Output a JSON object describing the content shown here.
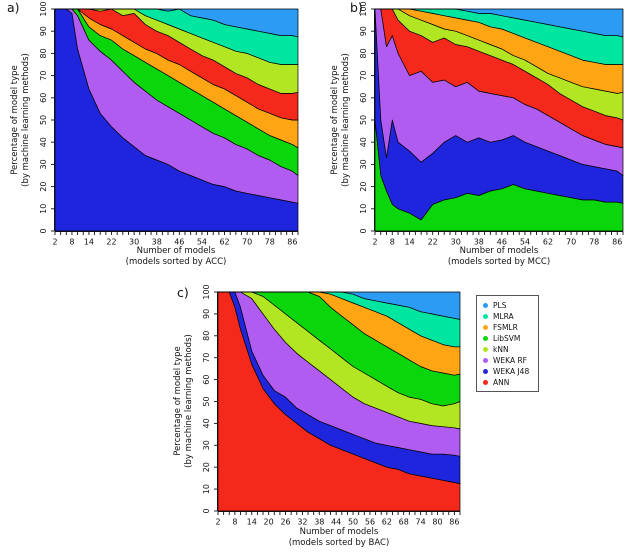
{
  "figure": {
    "background": "#ffffff",
    "panel_letters": [
      "a)",
      "b)",
      "c)"
    ]
  },
  "legend": {
    "items": [
      {
        "label": "PLS",
        "color": "#2b9bf3"
      },
      {
        "label": "MLRA",
        "color": "#00e6a0"
      },
      {
        "label": "FSMLR",
        "color": "#ffa513"
      },
      {
        "label": "LibSVM",
        "color": "#0bd60b"
      },
      {
        "label": "kNN",
        "color": "#b2e522"
      },
      {
        "label": "WEKA RF",
        "color": "#b05cf0"
      },
      {
        "label": "WEKA J48",
        "color": "#1f25dd"
      },
      {
        "label": "ANN",
        "color": "#f5281c"
      }
    ]
  },
  "chart_data": [
    {
      "type": "area",
      "stacked": true,
      "panel": "a",
      "xlabel": "Number of models",
      "xlabel2": "(models sorted by ACC)",
      "ylabel": "Percentage of model type",
      "ylabel2": "(by machine learning methods)",
      "xlim": [
        2,
        88
      ],
      "ylim": [
        0,
        100
      ],
      "x_minor_step": 2,
      "x_tick_labels": [
        2,
        8,
        14,
        22,
        30,
        38,
        46,
        54,
        62,
        70,
        78,
        86
      ],
      "y_ticks": [
        0,
        10,
        20,
        30,
        40,
        50,
        60,
        70,
        80,
        90,
        100
      ],
      "x": [
        2,
        6,
        8,
        10,
        14,
        18,
        22,
        26,
        30,
        34,
        38,
        42,
        46,
        50,
        54,
        58,
        62,
        66,
        70,
        74,
        78,
        82,
        86,
        88
      ],
      "series": [
        {
          "name": "WEKA J48",
          "color": "#1f25dd",
          "values": [
            100,
            100,
            98,
            82,
            64,
            53,
            47,
            42,
            38,
            34,
            32,
            30,
            27,
            25,
            23,
            21,
            20,
            18,
            17,
            16,
            15,
            14,
            13,
            12.5
          ]
        },
        {
          "name": "WEKA RF",
          "color": "#b05cf0",
          "values": [
            0,
            0,
            2,
            15,
            22,
            28,
            30,
            30,
            29,
            29,
            27,
            26,
            26,
            25,
            24,
            23,
            22,
            21,
            20,
            18,
            17,
            15,
            14,
            12.5
          ]
        },
        {
          "name": "LibSVM",
          "color": "#0bd60b",
          "values": [
            0,
            0,
            0,
            3,
            6,
            7,
            9,
            10,
            12,
            13,
            14,
            14,
            14,
            14,
            14,
            14,
            13,
            13,
            12,
            12,
            11,
            12,
            12,
            12.5
          ]
        },
        {
          "name": "FSMLR",
          "color": "#ffa513",
          "values": [
            0,
            0,
            0,
            0,
            4,
            5,
            5,
            6,
            6,
            6,
            7,
            7,
            8,
            8,
            8,
            8,
            9,
            9,
            9,
            9,
            10,
            10,
            11,
            12.5
          ]
        },
        {
          "name": "ANN",
          "color": "#f5281c",
          "values": [
            0,
            0,
            0,
            0,
            4,
            6,
            9,
            9,
            13,
            11,
            10,
            11,
            10,
            10,
            10,
            11,
            10,
            10,
            11,
            11,
            11,
            11,
            12,
            12.5
          ]
        },
        {
          "name": "kNN",
          "color": "#b2e522",
          "values": [
            0,
            0,
            0,
            0,
            0,
            1,
            0,
            3,
            2,
            4,
            5,
            5,
            6,
            7,
            8,
            8,
            9,
            10,
            11,
            12,
            12,
            13,
            13,
            12.5
          ]
        },
        {
          "name": "MLRA",
          "color": "#00e6a0",
          "values": [
            0,
            0,
            0,
            0,
            0,
            0,
            0,
            0,
            0,
            3,
            5,
            6,
            9,
            8,
            9,
            10,
            10,
            11,
            11,
            12,
            13,
            13,
            13,
            12.5
          ]
        },
        {
          "name": "PLS",
          "color": "#2b9bf3",
          "values": [
            0,
            0,
            0,
            0,
            0,
            0,
            0,
            0,
            0,
            0,
            0,
            1,
            0,
            3,
            4,
            5,
            7,
            8,
            9,
            10,
            11,
            12,
            12,
            12.5
          ]
        }
      ]
    },
    {
      "type": "area",
      "stacked": true,
      "panel": "b",
      "xlabel": "Number of models",
      "xlabel2": "(models sorted by MCC)",
      "ylabel": "Percentage of model type",
      "ylabel2": "(by machine learning methods)",
      "xlim": [
        2,
        88
      ],
      "ylim": [
        0,
        100
      ],
      "x_minor_step": 2,
      "x_tick_labels": [
        2,
        8,
        14,
        22,
        30,
        38,
        46,
        54,
        62,
        70,
        78,
        86
      ],
      "y_ticks": [
        0,
        10,
        20,
        30,
        40,
        50,
        60,
        70,
        80,
        90,
        100
      ],
      "x": [
        2,
        4,
        6,
        8,
        10,
        14,
        18,
        22,
        26,
        30,
        34,
        38,
        42,
        46,
        50,
        54,
        58,
        62,
        66,
        70,
        74,
        78,
        82,
        86,
        88
      ],
      "series": [
        {
          "name": "LibSVM",
          "color": "#0bd60b",
          "values": [
            50,
            25,
            18,
            12,
            10,
            8,
            5,
            12,
            14,
            15,
            17,
            16,
            18,
            19,
            21,
            19,
            18,
            17,
            16,
            15,
            14,
            14,
            13,
            13,
            12.5
          ]
        },
        {
          "name": "WEKA J48",
          "color": "#1f25dd",
          "values": [
            50,
            25,
            15,
            38,
            30,
            28,
            26,
            23,
            26,
            28,
            23,
            26,
            22,
            22,
            22,
            21,
            20,
            19,
            18,
            17,
            16,
            15,
            15,
            14,
            12.5
          ]
        },
        {
          "name": "WEKA RF",
          "color": "#b05cf0",
          "values": [
            0,
            50,
            50,
            38,
            40,
            34,
            41,
            32,
            28,
            22,
            27,
            21,
            22,
            20,
            17,
            17,
            17,
            16,
            15,
            14,
            13,
            12,
            11,
            11,
            12.5
          ]
        },
        {
          "name": "ANN",
          "color": "#f5281c",
          "values": [
            0,
            0,
            17,
            12,
            15,
            20,
            16,
            18,
            19,
            19,
            16,
            18,
            17,
            16,
            15,
            15,
            14,
            14,
            13,
            13,
            13,
            13,
            13,
            13,
            12.5
          ]
        },
        {
          "name": "kNN",
          "color": "#b2e522",
          "values": [
            0,
            0,
            0,
            0,
            5,
            7,
            7,
            8,
            4,
            6,
            5,
            5,
            5,
            5,
            4,
            5,
            5,
            5,
            7,
            8,
            9,
            10,
            11,
            11,
            12.5
          ]
        },
        {
          "name": "FSMLR",
          "color": "#ffa513",
          "values": [
            0,
            0,
            0,
            0,
            0,
            3,
            4,
            5,
            6,
            6,
            7,
            8,
            8,
            9,
            10,
            10,
            11,
            12,
            12,
            12,
            12,
            12,
            12,
            13,
            12.5
          ]
        },
        {
          "name": "MLRA",
          "color": "#00e6a0",
          "values": [
            0,
            0,
            0,
            0,
            0,
            0,
            1,
            2,
            3,
            4,
            4,
            4,
            6,
            6,
            7,
            8,
            9,
            10,
            11,
            12,
            13,
            13,
            13,
            13,
            12.5
          ]
        },
        {
          "name": "PLS",
          "color": "#2b9bf3",
          "values": [
            0,
            0,
            0,
            0,
            0,
            0,
            0,
            0,
            0,
            0,
            1,
            2,
            2,
            3,
            4,
            5,
            6,
            7,
            8,
            9,
            10,
            11,
            12,
            12,
            12.5
          ]
        }
      ]
    },
    {
      "type": "area",
      "stacked": true,
      "panel": "c",
      "xlabel": "Number of models",
      "xlabel2": "(models sorted by BAC)",
      "ylabel": "Percentage of model type",
      "ylabel2": "(by machine learning methods)",
      "xlim": [
        2,
        88
      ],
      "ylim": [
        0,
        100
      ],
      "x_minor_step": 2,
      "x_tick_labels": [
        2,
        8,
        14,
        20,
        26,
        32,
        38,
        44,
        50,
        56,
        62,
        68,
        74,
        80,
        86
      ],
      "y_ticks": [
        0,
        10,
        20,
        30,
        40,
        50,
        60,
        70,
        80,
        90,
        100
      ],
      "x": [
        2,
        6,
        8,
        10,
        14,
        18,
        22,
        26,
        30,
        34,
        38,
        42,
        46,
        50,
        54,
        58,
        62,
        66,
        70,
        74,
        78,
        82,
        86,
        88
      ],
      "series": [
        {
          "name": "ANN",
          "color": "#f5281c",
          "values": [
            100,
            100,
            93,
            83,
            67,
            56,
            49,
            44,
            40,
            36,
            33,
            30,
            28,
            26,
            24,
            22,
            20,
            19,
            17,
            16,
            15,
            14,
            13,
            12.5
          ]
        },
        {
          "name": "WEKA J48",
          "color": "#1f25dd",
          "values": [
            0,
            0,
            7,
            10,
            6,
            6,
            6,
            8,
            7,
            8,
            8,
            9,
            9,
            9,
            9,
            9,
            10,
            10,
            11,
            11,
            11,
            12,
            12.5,
            12.5
          ]
        },
        {
          "name": "WEKA RF",
          "color": "#b05cf0",
          "values": [
            0,
            0,
            0,
            7,
            24,
            28,
            28,
            25,
            25,
            24,
            23,
            21,
            19,
            17,
            16,
            16,
            15,
            14,
            13,
            13,
            13,
            12.5,
            12.5,
            12.5
          ]
        },
        {
          "name": "kNN",
          "color": "#b2e522",
          "values": [
            0,
            0,
            0,
            0,
            3,
            8,
            11,
            13,
            14,
            14,
            14,
            14,
            14,
            14,
            14,
            13,
            12,
            11,
            11,
            11,
            10,
            9.5,
            11,
            12.5
          ]
        },
        {
          "name": "LibSVM",
          "color": "#0bd60b",
          "values": [
            0,
            0,
            0,
            0,
            0,
            2,
            6,
            10,
            14,
            18,
            20,
            19,
            19,
            19,
            18,
            18,
            18,
            18,
            17,
            15,
            15,
            15,
            13,
            12.5
          ]
        },
        {
          "name": "FSMLR",
          "color": "#ffa513",
          "values": [
            0,
            0,
            0,
            0,
            0,
            0,
            0,
            0,
            0,
            0,
            2,
            6,
            8,
            10,
            12,
            13,
            14,
            14,
            14,
            14,
            14,
            13,
            13,
            12.5
          ]
        },
        {
          "name": "MLRA",
          "color": "#00e6a0",
          "values": [
            0,
            0,
            0,
            0,
            0,
            0,
            0,
            0,
            0,
            0,
            0,
            1,
            3,
            4,
            4,
            5,
            6,
            8,
            10,
            11,
            12,
            13,
            13,
            12.5
          ]
        },
        {
          "name": "PLS",
          "color": "#2b9bf3",
          "values": [
            0,
            0,
            0,
            0,
            0,
            0,
            0,
            0,
            0,
            0,
            0,
            0,
            0,
            1,
            3,
            4,
            5,
            6,
            7,
            9,
            10,
            11,
            12,
            12.5
          ]
        }
      ]
    }
  ]
}
